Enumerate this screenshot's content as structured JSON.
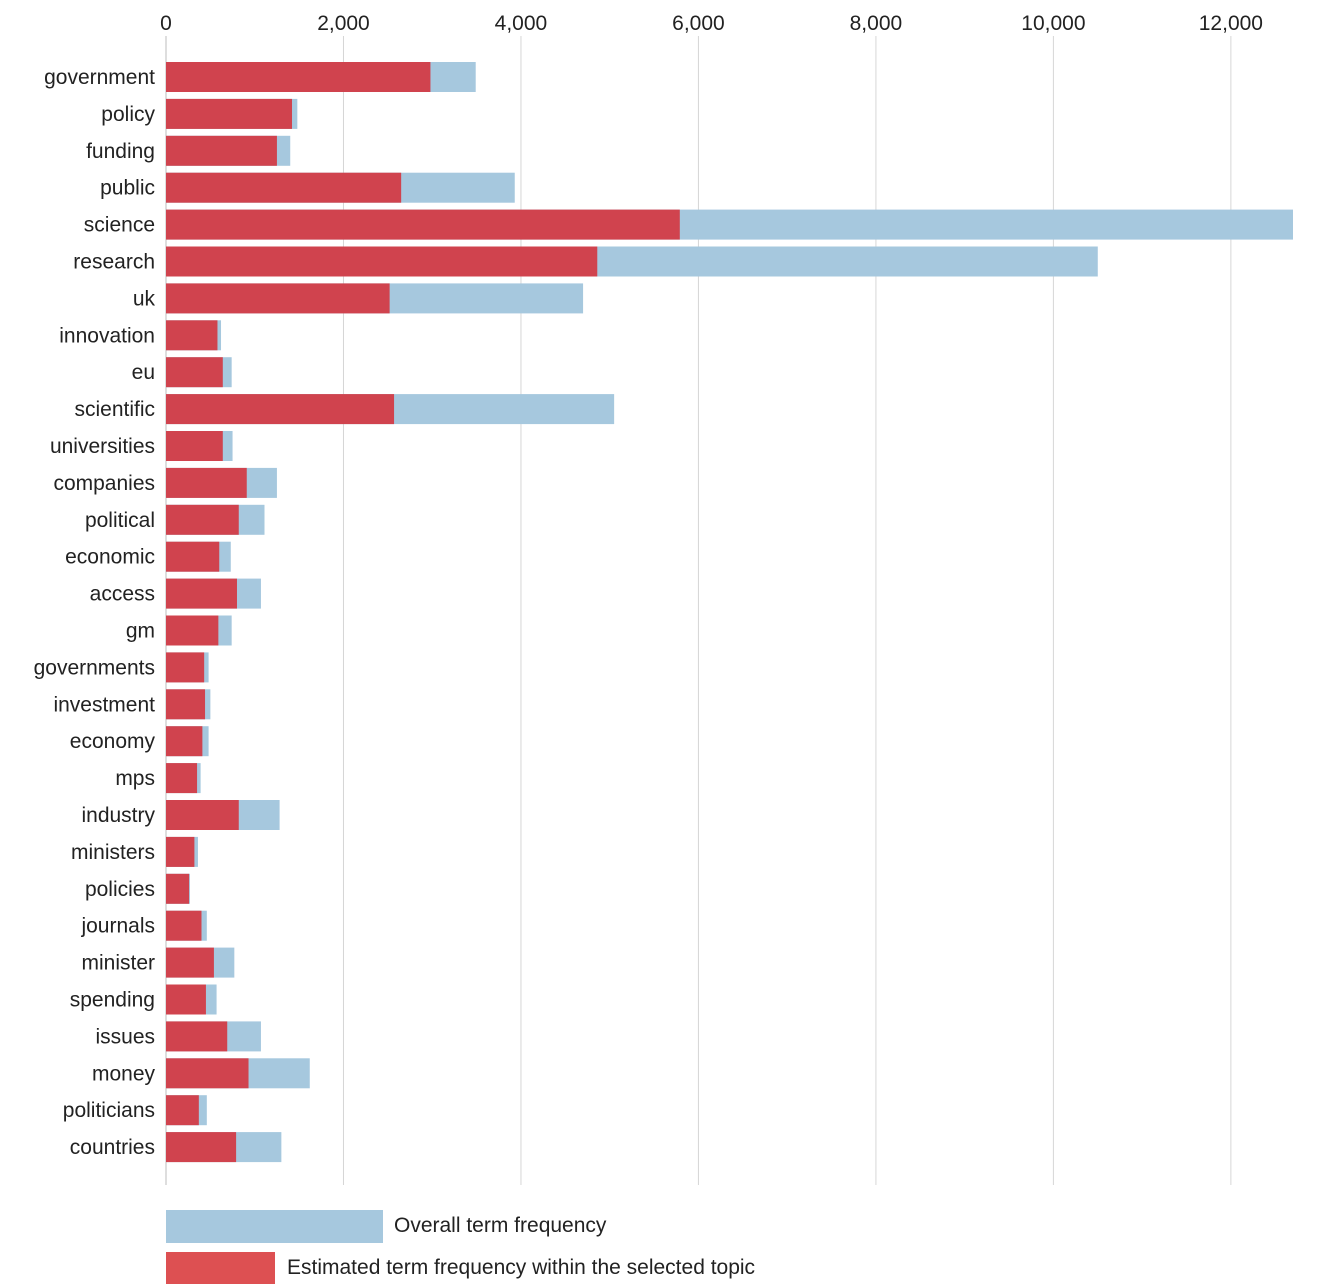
{
  "chart_data": {
    "type": "bar",
    "orientation": "horizontal",
    "xlim": [
      0,
      12700
    ],
    "x_ticks": [
      0,
      2000,
      4000,
      6000,
      8000,
      10000,
      12000
    ],
    "x_tick_labels": [
      "0",
      "2,000",
      "4,000",
      "6,000",
      "8,000",
      "10,000",
      "12,000"
    ],
    "grid": true,
    "categories": [
      "government",
      "policy",
      "funding",
      "public",
      "science",
      "research",
      "uk",
      "innovation",
      "eu",
      "scientific",
      "universities",
      "companies",
      "political",
      "economic",
      "access",
      "gm",
      "governments",
      "investment",
      "economy",
      "mps",
      "industry",
      "ministers",
      "policies",
      "journals",
      "minister",
      "spending",
      "issues",
      "money",
      "politicians",
      "countries"
    ],
    "series": [
      {
        "name": "Overall term frequency",
        "color": "#a6c8de",
        "values": [
          3490,
          1480,
          1400,
          3930,
          12700,
          10500,
          4700,
          620,
          740,
          5050,
          750,
          1250,
          1110,
          730,
          1070,
          740,
          480,
          500,
          480,
          390,
          1280,
          360,
          270,
          460,
          770,
          570,
          1070,
          1620,
          460,
          1300
        ]
      },
      {
        "name": "Estimated term frequency within the selected topic",
        "color": "#d0434e",
        "values": [
          2980,
          1420,
          1250,
          2650,
          5790,
          4860,
          2520,
          580,
          640,
          2570,
          640,
          910,
          820,
          600,
          800,
          590,
          430,
          440,
          410,
          350,
          820,
          320,
          260,
          400,
          540,
          450,
          690,
          930,
          370,
          790
        ]
      }
    ],
    "legend": {
      "placement": "bottom-left",
      "entries": [
        {
          "label": "Overall term frequency",
          "color": "#a6c8de"
        },
        {
          "label": "Estimated term frequency within the selected topic",
          "color": "#dd5052"
        }
      ]
    }
  }
}
